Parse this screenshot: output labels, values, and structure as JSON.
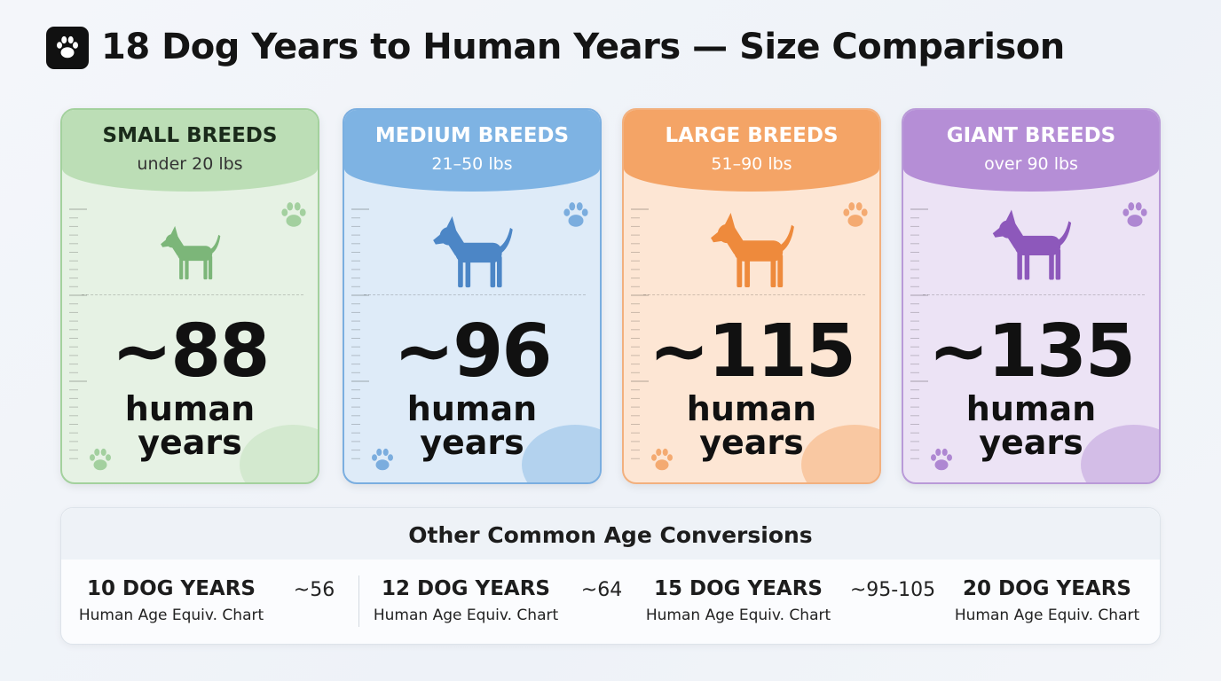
{
  "header": {
    "title": "18 Dog Years to Human Years — Size Comparison"
  },
  "cards": [
    {
      "name": "SMALL BREEDS",
      "weight": "under 20 lbs",
      "value": "~88",
      "unit": "human years"
    },
    {
      "name": "MEDIUM BREEDS",
      "weight": "21–50 lbs",
      "value": "~96",
      "unit": "human years"
    },
    {
      "name": "LARGE BREEDS",
      "weight": "51–90 lbs",
      "value": "~115",
      "unit": "human years"
    },
    {
      "name": "GIANT BREEDS",
      "weight": "over 90 lbs",
      "value": "~135",
      "unit": "human years"
    }
  ],
  "conversions": {
    "title": "Other Common Age Conversions",
    "items": [
      {
        "label": "10 DOG YEARS",
        "sub": "Human Age Equiv. Chart",
        "value": "~56"
      },
      {
        "label": "12 DOG YEARS",
        "sub": "Human Age Equiv. Chart",
        "value": "~64"
      },
      {
        "label": "15 DOG YEARS",
        "sub": "Human Age Equiv. Chart",
        "value": "~95-105"
      },
      {
        "label": "20 DOG YEARS",
        "sub": "Human Age Equiv. Chart"
      }
    ]
  }
}
